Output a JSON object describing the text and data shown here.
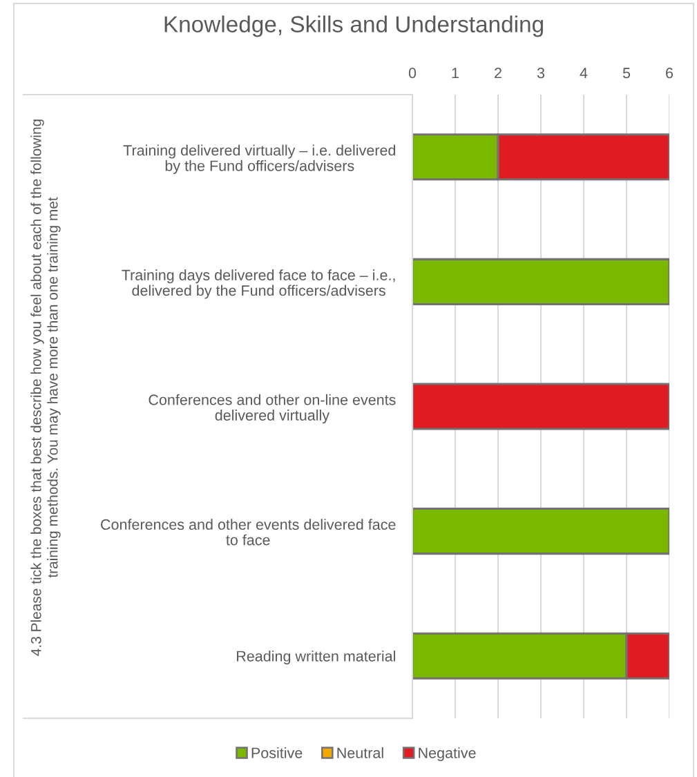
{
  "chart_data": {
    "type": "bar",
    "orientation": "horizontal",
    "stacked": true,
    "title": "Knowledge, Skills and Understanding",
    "annotations": [
      "4.3 Please tick the boxes that best describe how you feel about each of the following\ntraining methods. You may have more than one training met"
    ],
    "categories": [
      "Training delivered virtually – i.e. delivered\nby the Fund officers/advisers",
      "Training days delivered face to face – i.e.,\ndelivered by the Fund officers/advisers",
      "Conferences and other on-line events\ndelivered virtually",
      "Conferences and other events delivered face\nto face",
      "Reading written material"
    ],
    "series": [
      {
        "name": "Positive",
        "color": "#7ab800",
        "values": [
          2,
          6,
          0,
          6,
          5
        ]
      },
      {
        "name": "Neutral",
        "color": "#f2a900",
        "values": [
          0,
          0,
          0,
          0,
          0
        ]
      },
      {
        "name": "Negative",
        "color": "#e01b22",
        "values": [
          4,
          0,
          6,
          0,
          1
        ]
      }
    ],
    "xlim": [
      0,
      6
    ],
    "xticks": [
      0,
      1,
      2,
      3,
      4,
      5,
      6
    ],
    "grid": "x",
    "legend": "bottom"
  }
}
